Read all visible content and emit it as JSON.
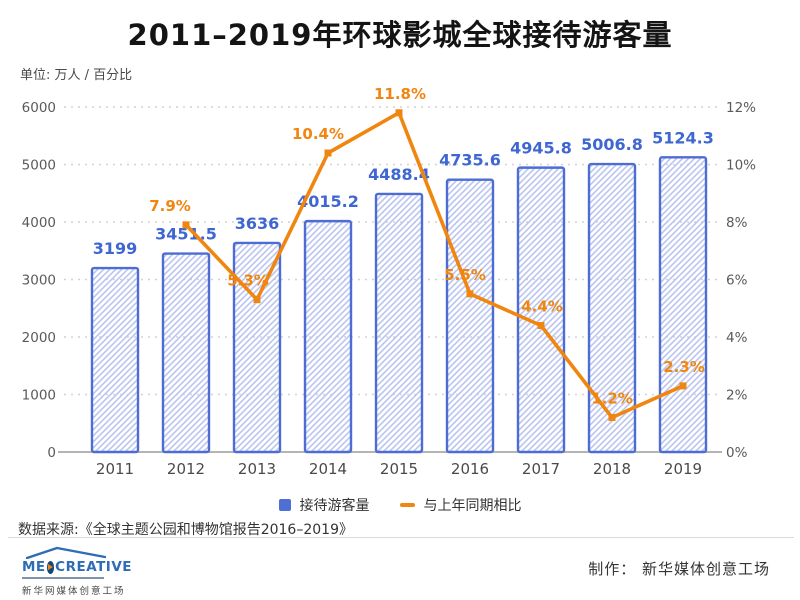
{
  "title": "2011–2019年环球影城全球接待游客量",
  "unit_label": "单位: 万人 / 百分比",
  "chart_data": {
    "type": "bar",
    "subtype": "bar+line combo",
    "title": "2011–2019年环球影城全球接待游客量",
    "categories": [
      "2011",
      "2012",
      "2013",
      "2014",
      "2015",
      "2016",
      "2017",
      "2018",
      "2019"
    ],
    "series": [
      {
        "name": "接待游客量",
        "type": "bar",
        "axis": "left",
        "values": [
          3199,
          3451.5,
          3636,
          4015.2,
          4488.4,
          4735.6,
          4945.8,
          5006.8,
          5124.3
        ]
      },
      {
        "name": "与上年同期相比",
        "type": "line",
        "axis": "right",
        "unit": "%",
        "values": [
          null,
          7.9,
          5.3,
          10.4,
          11.8,
          5.5,
          4.4,
          1.2,
          2.3
        ]
      }
    ],
    "y_left": {
      "label": "万人",
      "min": 0,
      "max": 6000,
      "ticks": [
        0,
        1000,
        2000,
        3000,
        4000,
        5000,
        6000
      ]
    },
    "y_right": {
      "label": "百分比",
      "min": 0,
      "max": 12,
      "tick_labels": [
        "0%",
        "2%",
        "4%",
        "6%",
        "8%",
        "10%",
        "12%"
      ]
    },
    "grid": "dashed horizontal",
    "legend_position": "bottom-center"
  },
  "legend": {
    "bar_label": "接待游客量",
    "line_label": "与上年同期相比"
  },
  "source": "数据来源:《全球主题公园和博物馆报告2016–2019》",
  "footer": {
    "logo_me": "ME",
    "logo_creative": "CREATIVE",
    "logo_subtitle": "新华网媒体创意工场",
    "credit": "制作： 新华媒体创意工场"
  },
  "colors": {
    "bar_border": "#4d6cd4",
    "bar_hatch": "#b9c5f0",
    "bar_value_label": "#3f67d1",
    "line_orange": "#f0860f",
    "axis_text": "#5a5a5a",
    "year_text": "#4a4a4a",
    "gridline": "#d2d2d2",
    "axis_line": "#b4b4b4",
    "legend_square": "#4d6fd6",
    "title_text": "#141414",
    "logo_blue": "#2e6cb5",
    "logo_navy": "#12497f"
  }
}
